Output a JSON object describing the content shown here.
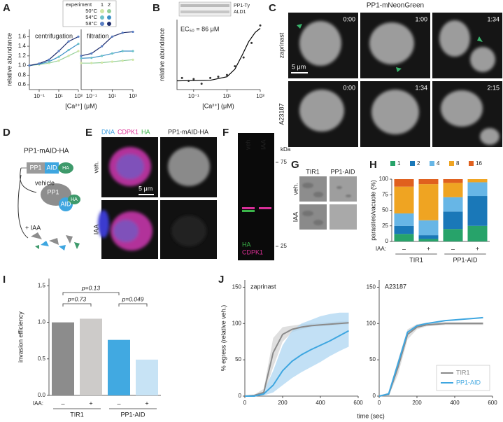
{
  "panel_letters": [
    "A",
    "B",
    "C",
    "D",
    "E",
    "F",
    "G",
    "H",
    "I",
    "J"
  ],
  "chart_data": [
    {
      "type": "line",
      "title": "centrifugation",
      "ylabel": "relative abundance",
      "xlabel": "[Ca²⁺] (μM)",
      "log_x": true,
      "xlim": [
        0.01,
        1000
      ],
      "ylim": [
        0.5,
        1.75
      ],
      "xticks": [
        {
          "value": 0.1,
          "label": "10⁻¹"
        },
        {
          "value": 10,
          "label": "10¹"
        },
        {
          "value": 1000,
          "label": "10³"
        }
      ],
      "yticks": [
        0.6,
        0.8,
        {
          "value": 1,
          "label": "1.0"
        },
        1.2,
        1.4,
        1.6
      ],
      "legend_title": "experiment",
      "legend_columns": [
        "1",
        "2"
      ],
      "x": [
        0.01,
        0.1,
        1,
        10,
        100,
        1000
      ],
      "series": [
        {
          "name": "50°C",
          "colors": [
            "#cfe6a6",
            "#93cf98"
          ],
          "values": [
            1.0,
            1.02,
            1.05,
            1.1,
            1.2,
            1.3
          ]
        },
        {
          "name": "54°C",
          "colors": [
            "#6cc3c9",
            "#3a8fc6"
          ],
          "values": [
            1.0,
            1.03,
            1.08,
            1.18,
            1.32,
            1.45
          ]
        },
        {
          "name": "58°C",
          "colors": [
            "#5b7fc4",
            "#1f2d6d"
          ],
          "values": [
            1.0,
            1.04,
            1.12,
            1.3,
            1.5,
            1.6
          ]
        }
      ]
    },
    {
      "type": "line",
      "title": "filtration",
      "log_x": true,
      "xlim": [
        0.01,
        1000
      ],
      "ylim": [
        0.5,
        1.75
      ],
      "xticks": [
        {
          "value": 0.1,
          "label": "10⁻¹"
        },
        {
          "value": 10,
          "label": "10¹"
        },
        {
          "value": 1000,
          "label": "10³"
        }
      ],
      "x": [
        0.01,
        0.1,
        1,
        10,
        100,
        1000
      ],
      "series": [
        {
          "name": "50°C",
          "colors": [
            "#cfe6a6",
            "#93cf98"
          ],
          "values": [
            1.05,
            1.05,
            1.06,
            1.08,
            1.1,
            1.12
          ]
        },
        {
          "name": "54°C",
          "colors": [
            "#6cc3c9",
            "#3a8fc6"
          ],
          "values": [
            1.15,
            1.16,
            1.2,
            1.25,
            1.3,
            1.3
          ]
        },
        {
          "name": "58°C",
          "colors": [
            "#5b7fc4",
            "#1f2d6d"
          ],
          "values": [
            1.2,
            1.25,
            1.4,
            1.6,
            1.68,
            1.7
          ]
        }
      ]
    },
    {
      "type": "scatter",
      "ylabel": "relative abundance",
      "xlabel": "[Ca²⁺] (μM)",
      "annotation": "EC₅₀ = 86 μM",
      "blot_labels": [
        "PP1-Ty",
        "ALD1"
      ],
      "log_x": true,
      "xlim": [
        0.01,
        1000
      ],
      "ylim": [
        -0.1,
        1.1
      ],
      "xticks": [
        {
          "value": 0.1,
          "label": "10⁻¹"
        },
        {
          "value": 10,
          "label": "10¹"
        },
        {
          "value": 1000,
          "label": "10³"
        }
      ],
      "x": [
        0.02,
        0.05,
        0.1,
        0.3,
        1,
        3,
        10,
        30,
        100,
        300,
        1000
      ],
      "values": [
        0.1,
        0.05,
        0.08,
        0.0,
        0.1,
        0.12,
        0.15,
        0.3,
        0.45,
        0.7,
        1.0
      ],
      "color": "#333333",
      "fit": {
        "x": [
          0.01,
          1,
          10,
          30,
          86,
          200,
          500,
          1000
        ],
        "values": [
          0.05,
          0.06,
          0.12,
          0.25,
          0.5,
          0.72,
          0.88,
          0.95
        ],
        "color": "#000000"
      }
    },
    {
      "type": "stacked_bar",
      "ylabel": "parasites/vacuole (%)",
      "ylim": [
        0,
        100
      ],
      "yticks": [
        0,
        25,
        50,
        75,
        100
      ],
      "categories": [
        "–",
        "+",
        "–",
        "+"
      ],
      "category_prefix": "IAA:",
      "groups": [
        "TIR1",
        "PP1-AID"
      ],
      "series": [
        {
          "name": "1",
          "color": "#27a36a",
          "values": [
            12,
            4,
            20,
            25
          ]
        },
        {
          "name": "2",
          "color": "#1a78b8",
          "values": [
            13,
            6,
            28,
            48
          ]
        },
        {
          "name": "4",
          "color": "#67b6e6",
          "values": [
            20,
            24,
            23,
            22
          ]
        },
        {
          "name": "8",
          "color": "#efa422",
          "values": [
            43,
            58,
            23,
            5
          ]
        },
        {
          "name": "16",
          "color": "#e0601e",
          "values": [
            12,
            8,
            6,
            0
          ]
        }
      ]
    },
    {
      "type": "bar",
      "ylabel": "invasion efficiency",
      "ylim": [
        0,
        1.6
      ],
      "yticks": [
        {
          "value": 0,
          "label": "0.0"
        },
        0.5,
        {
          "value": 1,
          "label": "1.0"
        },
        1.5
      ],
      "categories": [
        "–",
        "+",
        "–",
        "+"
      ],
      "category_prefix": "IAA:",
      "groups": [
        "TIR1",
        "PP1-AID"
      ],
      "values": [
        1.0,
        1.05,
        0.76,
        0.49
      ],
      "colors": [
        "#8c8c8c",
        "#cdcbc9",
        "#41a9e1",
        "#c7e3f5"
      ],
      "annotations": [
        "p=0.73",
        "p=0.13",
        "p=0.049"
      ]
    },
    {
      "type": "line_band",
      "title": "zaprinast",
      "ylabel": "% egress (relative veh.)",
      "xlabel": "time (sec)",
      "xlim": [
        0,
        600
      ],
      "ylim": [
        0,
        160
      ],
      "xticks": [
        0,
        200,
        400,
        600
      ],
      "yticks": [
        0,
        50,
        100,
        150
      ],
      "x": [
        0,
        50,
        100,
        150,
        200,
        250,
        300,
        350,
        400,
        450,
        500,
        550
      ],
      "series": [
        {
          "name": "TIR1",
          "color": "#8a8a8a",
          "band_color": "#d4d4d4",
          "values": [
            0,
            1,
            5,
            60,
            85,
            92,
            95,
            97,
            98,
            99,
            100,
            101
          ],
          "lower": [
            0,
            0,
            2,
            40,
            75,
            88,
            92,
            95,
            96,
            97,
            98,
            99
          ],
          "upper": [
            0,
            2,
            10,
            80,
            95,
            97,
            99,
            100,
            101,
            102,
            103,
            104
          ]
        },
        {
          "name": "PP1-AID",
          "color": "#3ea6e0",
          "band_color": "#aed6f1",
          "values": [
            0,
            0,
            3,
            15,
            35,
            48,
            57,
            64,
            70,
            76,
            83,
            90
          ],
          "lower": [
            0,
            0,
            1,
            5,
            15,
            25,
            33,
            40,
            47,
            55,
            62,
            68
          ],
          "upper": [
            0,
            1,
            6,
            35,
            70,
            90,
            100,
            105,
            110,
            113,
            115,
            115
          ]
        }
      ]
    },
    {
      "type": "line_band",
      "title": "A23187",
      "legend": "lower right",
      "xlim": [
        0,
        600
      ],
      "ylim": [
        0,
        160
      ],
      "xticks": [
        0,
        200,
        400,
        600
      ],
      "yticks": [
        0,
        50,
        100,
        150
      ],
      "x": [
        0,
        50,
        100,
        150,
        200,
        250,
        300,
        350,
        400,
        450,
        500,
        550
      ],
      "series": [
        {
          "name": "TIR1",
          "color": "#8a8a8a",
          "band_color": "#d4d4d4",
          "values": [
            0,
            2,
            40,
            85,
            95,
            98,
            99,
            100,
            100,
            100,
            100,
            100
          ],
          "lower": [
            0,
            0,
            30,
            78,
            92,
            96,
            97,
            98,
            98,
            98,
            98,
            98
          ],
          "upper": [
            0,
            5,
            50,
            92,
            99,
            101,
            102,
            102,
            102,
            102,
            102,
            102
          ]
        },
        {
          "name": "PP1-AID",
          "color": "#3ea6e0",
          "values": [
            0,
            3,
            45,
            88,
            97,
            100,
            102,
            104,
            105,
            106,
            107,
            108
          ]
        }
      ]
    }
  ],
  "panel_C": {
    "title": "PP1-mNeonGreen",
    "scale": "5 μm",
    "rows": [
      {
        "label": "zaprinast",
        "times": [
          "0:00",
          "1:00",
          "1:34"
        ]
      },
      {
        "label": "A23187",
        "times": [
          "0:00",
          "1:34",
          "2:15"
        ]
      }
    ]
  },
  "panel_D": {
    "construct": "PP1-mAID-HA",
    "domains": [
      "PP1",
      "AID",
      "HA"
    ],
    "arrow_labels": [
      "vehicle",
      "+ IAA"
    ]
  },
  "panel_E": {
    "stains": [
      {
        "text": "DNA",
        "color": "#3f9fe0"
      },
      {
        "text": "CDPK1",
        "color": "#de2f97"
      },
      {
        "text": "HA",
        "color": "#3bb54a"
      }
    ],
    "channel": "PP1-mAID-HA",
    "rows": [
      "veh.",
      "IAA"
    ],
    "scale": "5 μm"
  },
  "panel_F": {
    "lanes": [
      "veh.",
      "IAA"
    ],
    "unit": "kDa",
    "markers": [
      75,
      25
    ],
    "stains": [
      {
        "text": "HA",
        "color": "#3bb54a"
      },
      {
        "text": "CDPK1",
        "color": "#de2f97"
      }
    ]
  },
  "panel_G": {
    "columns": [
      "TIR1",
      "PP1-AID"
    ],
    "rows": [
      "veh.",
      "IAA"
    ]
  }
}
